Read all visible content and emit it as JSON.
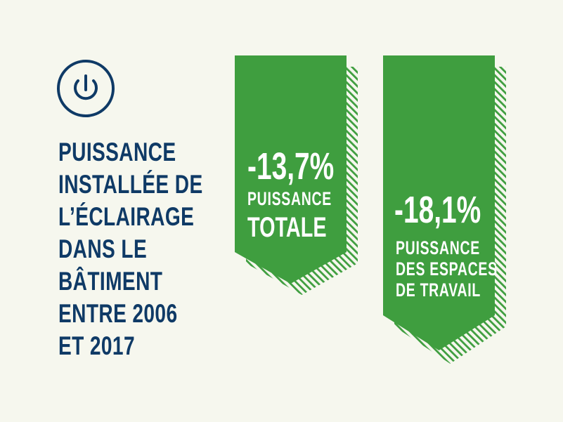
{
  "icon": "power-icon",
  "headline_lines": [
    "PUISSANCE",
    "INSTALLÉE DE",
    "L’ÉCLAIRAGE",
    "DANS LE",
    "BÂTIMENT",
    "ENTRE 2006",
    "ET 2017"
  ],
  "ribbons": [
    {
      "value": "-13,7%",
      "label_1": "PUISSANCE",
      "label_2": "TOTALE"
    },
    {
      "value": "-18,1%",
      "label_1": "PUISSANCE",
      "label_2": "DES ESPACES",
      "label_3": "DE TRAVAIL"
    }
  ],
  "colors": {
    "background": "#f6f7ee",
    "navy": "#0f3a66",
    "green": "#3f9e3f",
    "hatch": "#3f9e3f",
    "text_on_green": "#ffffff"
  }
}
